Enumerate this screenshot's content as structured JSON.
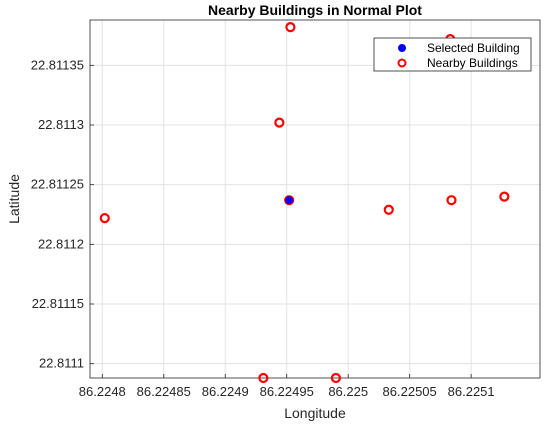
{
  "chart_data": {
    "type": "scatter",
    "title": "Nearby Buildings in Normal Plot",
    "xlabel": "Longitude",
    "ylabel": "Latitude",
    "xlim": [
      86.22479,
      86.225156
    ],
    "ylim": [
      22.811088,
      22.811388
    ],
    "x_ticks": [
      86.2248,
      86.22485,
      86.2249,
      86.22495,
      86.225,
      86.22505,
      86.2251
    ],
    "x_tick_labels": [
      "86.2248",
      "86.22485",
      "86.2249",
      "86.22495",
      "86.225",
      "86.22505",
      "86.2251"
    ],
    "y_ticks": [
      22.8111,
      22.81115,
      22.8112,
      22.81125,
      22.8113,
      22.81135
    ],
    "y_tick_labels": [
      "22.8111",
      "22.81115",
      "22.8112",
      "22.81125",
      "22.8113",
      "22.81135"
    ],
    "grid": true,
    "legend_position": "top-right",
    "series": [
      {
        "name": "Selected Building",
        "marker": "filled-circle",
        "color": "#0000ff",
        "points": [
          [
            86.224952,
            22.811237
          ]
        ]
      },
      {
        "name": "Nearby Buildings",
        "marker": "open-circle",
        "color": "#ff0000",
        "points": [
          [
            86.224802,
            22.811222
          ],
          [
            86.224952,
            22.811237
          ],
          [
            86.224944,
            22.811302
          ],
          [
            86.224953,
            22.811382
          ],
          [
            86.224931,
            22.811088
          ],
          [
            86.22499,
            22.811088
          ],
          [
            86.225033,
            22.811229
          ],
          [
            86.225084,
            22.811237
          ],
          [
            86.225083,
            22.811372
          ],
          [
            86.225127,
            22.81124
          ]
        ]
      }
    ]
  }
}
